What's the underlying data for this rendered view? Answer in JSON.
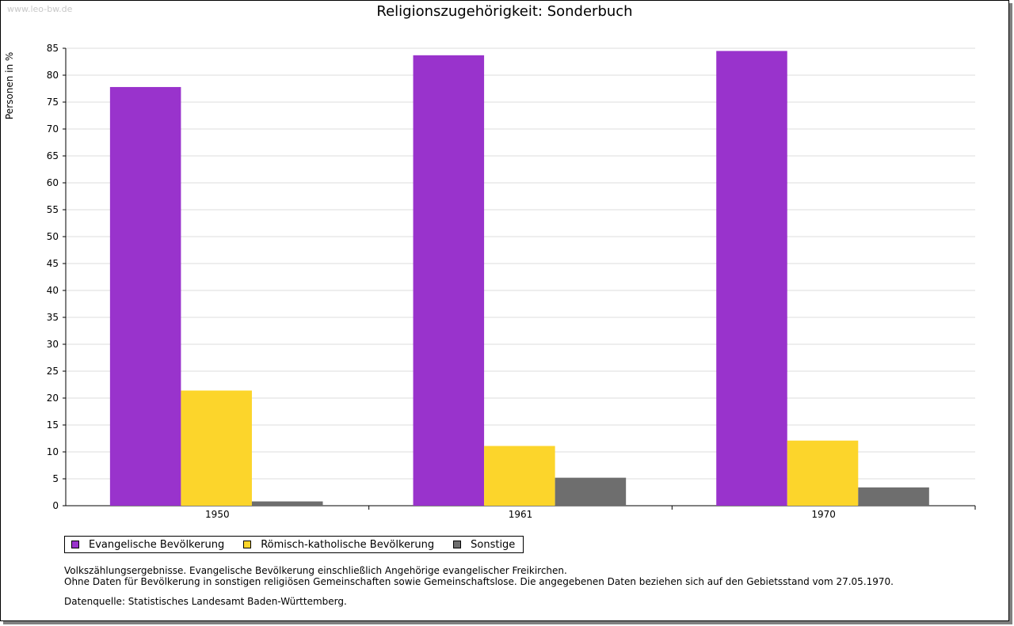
{
  "watermark": "www.leo-bw.de",
  "notes": {
    "line1": "Volkszählungsergebnisse. Evangelische Bevölkerung einschließlich Angehörige evangelischer Freikirchen.",
    "line2": "Ohne Daten für Bevölkerung in sonstigen religiösen Gemeinschaften sowie Gemeinschaftslose. Die angegebenen Daten beziehen sich auf den Gebietsstand vom 27.05.1970.",
    "source": "Datenquelle: Statistisches Landesamt Baden-Württemberg."
  },
  "chart_data": {
    "type": "bar",
    "title": "Religionszugehörigkeit: Sonderbuch",
    "xlabel": "",
    "ylabel": "Personen in %",
    "categories": [
      "1950",
      "1961",
      "1970"
    ],
    "ylim": [
      0,
      85
    ],
    "yticks": [
      0,
      5,
      10,
      15,
      20,
      25,
      30,
      35,
      40,
      45,
      50,
      55,
      60,
      65,
      70,
      75,
      80,
      85
    ],
    "grid": true,
    "legend_position": "bottom-left",
    "series": [
      {
        "name": "Evangelische Bevölkerung",
        "color": "#9933cc",
        "values": [
          77.8,
          83.7,
          84.5
        ]
      },
      {
        "name": "Römisch-katholische Bevölkerung",
        "color": "#fcd52b",
        "values": [
          21.4,
          11.1,
          12.1
        ]
      },
      {
        "name": "Sonstige",
        "color": "#6e6e6e",
        "values": [
          0.8,
          5.2,
          3.4
        ]
      }
    ]
  }
}
